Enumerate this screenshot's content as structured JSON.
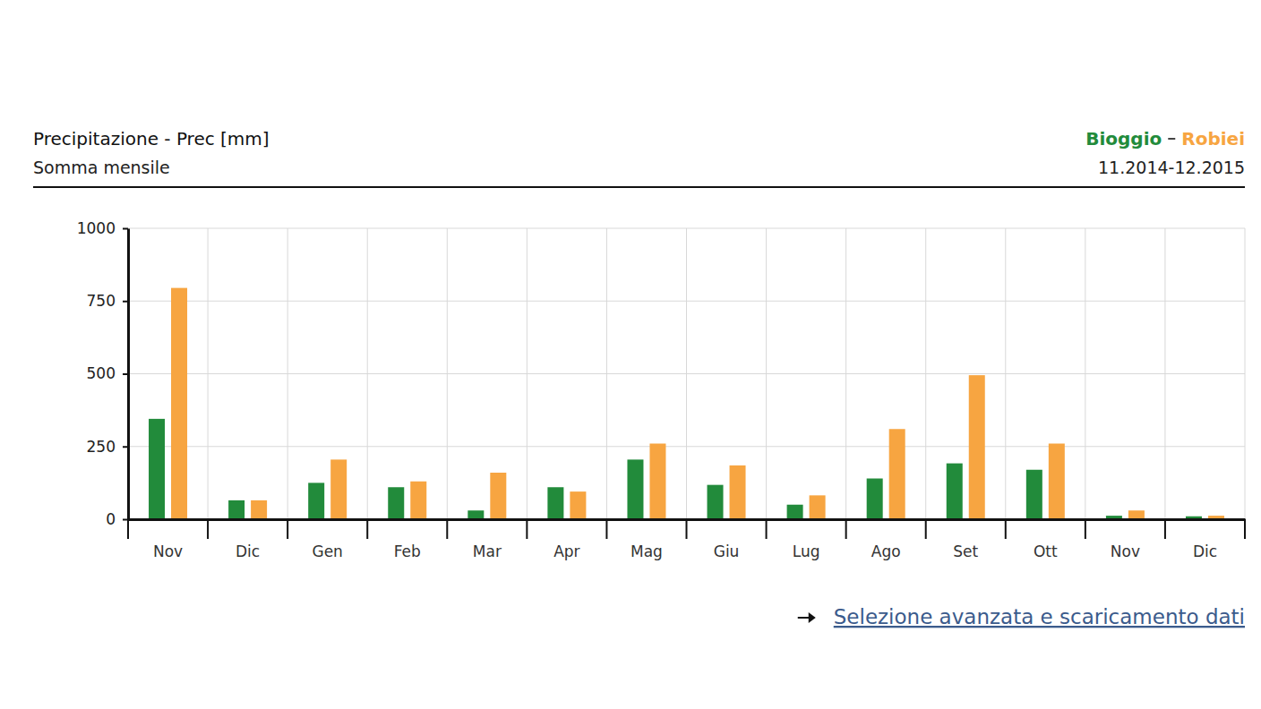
{
  "chart_data": {
    "type": "bar",
    "title": "Precipitazione - Prec [mm]",
    "subtitle": "Somma mensile",
    "annotations": [
      "11.2014-12.2015",
      "Selezione avanzata e scaricamento dati"
    ],
    "categories": [
      "Nov",
      "Dic",
      "Gen",
      "Feb",
      "Mar",
      "Apr",
      "Mag",
      "Giu",
      "Lug",
      "Ago",
      "Set",
      "Ott",
      "Nov",
      "Dic"
    ],
    "series": [
      {
        "name": "Bioggio",
        "color": "#228b3b",
        "values": [
          345,
          65,
          125,
          110,
          30,
          110,
          205,
          118,
          50,
          140,
          192,
          170,
          12,
          10
        ]
      },
      {
        "name": "Robiei",
        "color": "#f7a541",
        "values": [
          795,
          65,
          205,
          130,
          160,
          95,
          260,
          185,
          82,
          310,
          495,
          260,
          30,
          12
        ]
      }
    ],
    "ylim": [
      0,
      1000
    ],
    "yticks": [
      0,
      250,
      500,
      750,
      1000
    ],
    "grid": true,
    "legend": "top-right"
  }
}
